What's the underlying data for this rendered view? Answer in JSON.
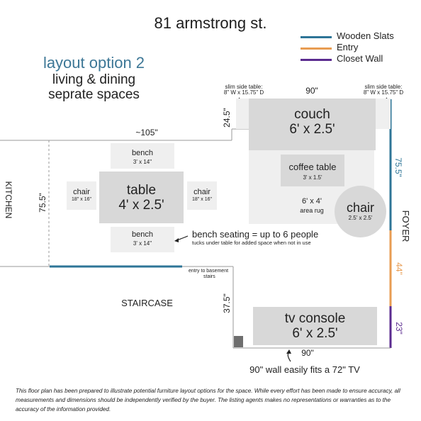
{
  "title": "81 armstrong st.",
  "option": {
    "title": "layout option 2",
    "subtitle_line1": "living & dining",
    "subtitle_line2": "seprate spaces"
  },
  "legend": [
    {
      "label": "Wooden Slats",
      "color": "#2e7597"
    },
    {
      "label": "Entry",
      "color": "#e89c52"
    },
    {
      "label": "Closet Wall",
      "color": "#5b2b8f"
    }
  ],
  "rooms": {
    "kitchen": "KITCHEN",
    "foyer": "FOYER",
    "staircase": "STAIRCASE"
  },
  "living": {
    "couch": {
      "name": "couch",
      "size": "6' x 2.5'"
    },
    "coffee_table": {
      "name": "coffee table",
      "size": "3' x 1.5'"
    },
    "rug": {
      "line1": "6' x 4'",
      "line2": "area rug"
    },
    "chair": {
      "name": "chair",
      "size": "2.5' x 2.5'"
    },
    "side_table_left": {
      "line1": "slim side table:",
      "line2": "8\" W x 15.75\" D"
    },
    "side_table_right": {
      "line1": "slim side table:",
      "line2": "8\" W x 15.75\" D"
    }
  },
  "dining": {
    "table": {
      "name": "table",
      "size": "4' x 2.5'"
    },
    "bench_top": {
      "name": "bench",
      "size": "3' x 14\""
    },
    "bench_bottom": {
      "name": "bench",
      "size": "3' x 14\""
    },
    "chair_left": {
      "name": "chair",
      "size": "18\" x 16\""
    },
    "chair_right": {
      "name": "chair",
      "size": "18\" x 16\""
    },
    "bench_note": "bench seating = up to 6 people",
    "bench_subnote": "tucks under table for added space when not in use"
  },
  "tv": {
    "name": "tv console",
    "size": "6' x 2.5'",
    "note": "90\" wall easily fits a 72\" TV"
  },
  "basement_note": {
    "line1": "entry to basement",
    "line2": "stairs"
  },
  "dimensions": {
    "couch_wall_width": "90\"",
    "couch_depth": "24.5\"",
    "living_width": "~105\"",
    "dining_depth": "75.5\"",
    "slats_length": "75.5\"",
    "entry_length": "44\"",
    "closet_length": "23\"",
    "tv_wall_depth": "37.5\"",
    "tv_wall_width": "90\""
  },
  "disclaimer": "This floor plan has been prepared to illustrate potential furniture layout options for the space. While every effort has been made to ensure accuracy, all measurements and dimensions should be independently verified by the buyer. The listing agents makes no representations or warranties as to the accuracy of the information provided."
}
